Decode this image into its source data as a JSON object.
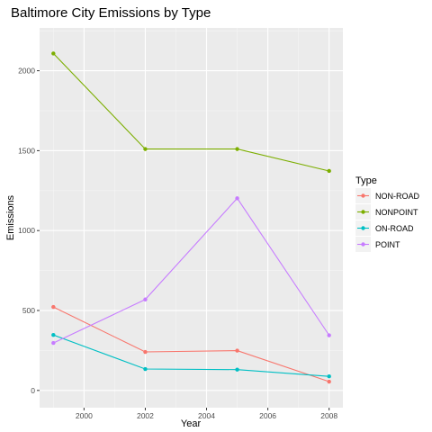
{
  "chart_data": {
    "type": "line",
    "title": "Baltimore City Emissions by Type",
    "xlabel": "Year",
    "ylabel": "Emissions",
    "x": [
      1999,
      2002,
      2005,
      2008
    ],
    "xlim": [
      1998.55,
      2008.45
    ],
    "ylim": [
      -108,
      2268
    ],
    "xticks": [
      2000,
      2002,
      2004,
      2006,
      2008
    ],
    "yticks": [
      0,
      500,
      1000,
      1500,
      2000
    ],
    "grid": true,
    "legend": {
      "title": "Type",
      "position": "right"
    },
    "series": [
      {
        "name": "NON-ROAD",
        "color": "#F8766D",
        "values": [
          522,
          241,
          249,
          55
        ]
      },
      {
        "name": "NONPOINT",
        "color": "#7CAE00",
        "values": [
          2108,
          1510,
          1510,
          1373
        ]
      },
      {
        "name": "ON-ROAD",
        "color": "#00BFC4",
        "values": [
          347,
          134,
          130,
          88
        ]
      },
      {
        "name": "POINT",
        "color": "#C77CFF",
        "values": [
          297,
          569,
          1202,
          345
        ]
      }
    ]
  }
}
